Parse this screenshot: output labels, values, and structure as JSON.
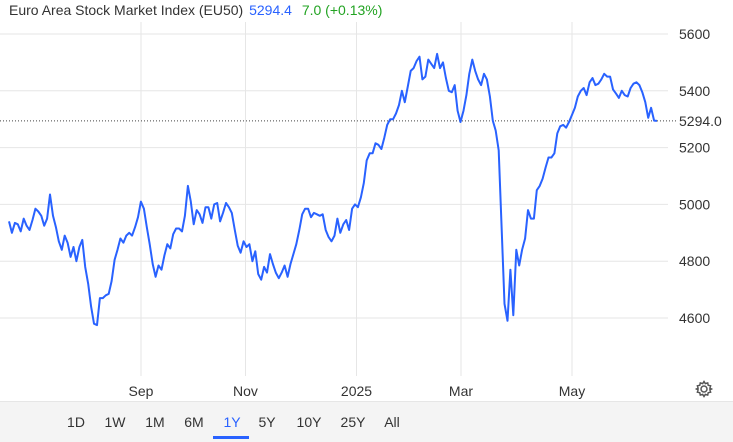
{
  "header": {
    "title": "Euro Area Stock Market Index (EU50)",
    "price": "5294.4",
    "change": "7.0 (+0.13%)"
  },
  "chart_data": {
    "type": "line",
    "ylim": [
      4400,
      5650
    ],
    "y_ticks": [
      4600,
      4800,
      5000,
      5200,
      5400,
      5600
    ],
    "x_ticks": [
      {
        "label": "Sep",
        "x": 2024.67
      },
      {
        "label": "Nov",
        "x": 2024.83
      },
      {
        "label": "2025",
        "x": 2025.0
      },
      {
        "label": "Mar",
        "x": 2025.16
      },
      {
        "label": "May",
        "x": 2025.33
      }
    ],
    "last_value": 5294.0,
    "last_value_label": "5294.0",
    "colors": {
      "line": "#2962ff",
      "grid": "#e6e6e6",
      "text": "#333333",
      "last_label_bg": "#ffffff"
    },
    "series": [
      {
        "values": [
          4940,
          4900,
          4935,
          4930,
          4905,
          4950,
          4925,
          4910,
          4945,
          4985,
          4975,
          4960,
          4925,
          4950,
          5035,
          4960,
          4920,
          4870,
          4840,
          4890,
          4865,
          4815,
          4850,
          4800,
          4850,
          4875,
          4780,
          4720,
          4640,
          4580,
          4575,
          4670,
          4670,
          4680,
          4685,
          4730,
          4805,
          4840,
          4880,
          4865,
          4890,
          4900,
          4890,
          4920,
          4955,
          5010,
          4985,
          4920,
          4860,
          4790,
          4745,
          4785,
          4770,
          4820,
          4860,
          4845,
          4895,
          4915,
          4915,
          4905,
          4960,
          5065,
          5010,
          4930,
          4980,
          4965,
          4935,
          4990,
          4990,
          4950,
          5000,
          5005,
          4940,
          4970,
          5005,
          4990,
          4970,
          4910,
          4855,
          4830,
          4870,
          4850,
          4860,
          4800,
          4835,
          4755,
          4735,
          4780,
          4760,
          4825,
          4790,
          4760,
          4740,
          4760,
          4785,
          4745,
          4790,
          4825,
          4860,
          4910,
          4965,
          4985,
          4985,
          4955,
          4970,
          4965,
          4960,
          4965,
          4910,
          4885,
          4870,
          4890,
          4950,
          4900,
          4930,
          4945,
          4910,
          4985,
          5000,
          4990,
          5025,
          5075,
          5155,
          5180,
          5180,
          5215,
          5210,
          5195,
          5235,
          5280,
          5300,
          5300,
          5320,
          5350,
          5400,
          5360,
          5415,
          5470,
          5480,
          5505,
          5520,
          5440,
          5450,
          5510,
          5495,
          5480,
          5530,
          5480,
          5500,
          5445,
          5400,
          5395,
          5420,
          5330,
          5290,
          5330,
          5385,
          5460,
          5510,
          5470,
          5440,
          5420,
          5460,
          5440,
          5380,
          5295,
          5260,
          5190,
          4920,
          4650,
          4590,
          4770,
          4610,
          4840,
          4785,
          4840,
          4880,
          4980,
          4950,
          4950,
          5050,
          5065,
          5090,
          5130,
          5165,
          5165,
          5180,
          5250,
          5275,
          5280,
          5270,
          5290,
          5315,
          5340,
          5380,
          5400,
          5410,
          5385,
          5430,
          5445,
          5420,
          5425,
          5440,
          5460,
          5450,
          5450,
          5405,
          5390,
          5375,
          5400,
          5385,
          5380,
          5410,
          5425,
          5430,
          5420,
          5395,
          5360,
          5305,
          5340,
          5295,
          5294
        ]
      }
    ]
  },
  "timeframes": [
    "1D",
    "1W",
    "1M",
    "6M",
    "1Y",
    "5Y",
    "10Y",
    "25Y",
    "All"
  ],
  "active_timeframe": "1Y",
  "settings_icon": "gear-icon"
}
